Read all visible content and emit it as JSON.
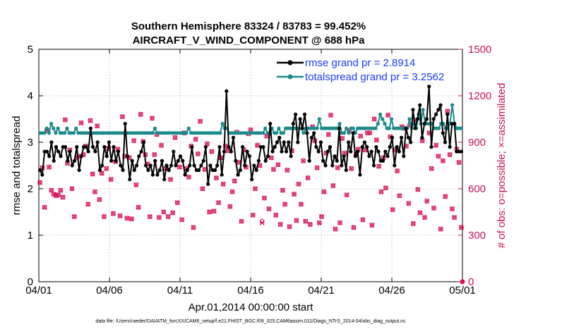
{
  "chart_data": {
    "type": "line",
    "title_line1": "Southern Hemisphere 83324 / 83783 = 99.452%",
    "title_line2": "AIRCRAFT_V_WIND_COMPONENT @ 688 hPa",
    "xlabel": "Apr.01,2014 00:00:00 start",
    "ylabel_left": "rmse and totalspread",
    "ylabel_right": "# of obs: o=possible; ×=assimilated",
    "x_ticks": [
      "04/01",
      "04/06",
      "04/11",
      "04/16",
      "04/21",
      "04/26",
      "05/01"
    ],
    "x_range_days": [
      0,
      30
    ],
    "y_left_ticks": [
      "0",
      "1",
      "2",
      "3",
      "4",
      "5"
    ],
    "y_left_range": [
      0,
      5
    ],
    "y_right_ticks": [
      "0",
      "300",
      "600",
      "900",
      "1200",
      "1500"
    ],
    "y_right_range": [
      0,
      1500
    ],
    "legend": [
      "rmse grand pr = 2.8914",
      "totalspread grand pr = 3.2562"
    ],
    "footnote": "data file: /Users/raeder/DAI/ATM_forcXX/CAM6_setup/f.e21.FHIST_BGC.f09_025.CAM6assim.011/Diags_NTrS_2014-04/obs_diag_output.nc",
    "colors": {
      "rmse": "#000000",
      "spread": "#1a8a8a",
      "obs": "#d8105a",
      "legend_text": "#1a3cff",
      "right_axis": "#c8105a"
    },
    "series": [
      {
        "name": "rmse",
        "values": [
          2.4,
          2.3,
          2.8,
          2.8,
          2.7,
          3.0,
          2.6,
          2.9,
          2.8,
          2.7,
          2.9,
          2.9,
          2.6,
          2.8,
          2.5,
          2.6,
          2.9,
          2.4,
          2.7,
          2.9,
          2.9,
          2.8,
          3.3,
          2.9,
          2.8,
          3.0,
          2.4,
          2.5,
          2.9,
          2.7,
          3.0,
          2.6,
          2.9,
          2.6,
          2.8,
          2.5,
          2.4,
          3.4,
          2.7,
          2.2,
          2.6,
          2.4,
          2.5,
          2.7,
          2.8,
          3.0,
          2.5,
          2.4,
          2.5,
          2.3,
          2.6,
          2.3,
          2.4,
          2.6,
          2.2,
          2.5,
          2.4,
          2.5,
          2.8,
          2.5,
          2.6,
          2.7,
          2.6,
          2.3,
          2.4,
          2.5,
          2.9,
          2.5,
          2.4,
          2.4,
          2.5,
          2.6,
          2.9,
          2.1,
          2.5,
          2.4,
          2.4,
          2.5,
          2.9,
          2.3,
          2.8,
          4.1,
          2.9,
          2.8,
          3.1,
          2.6,
          2.3,
          2.4,
          2.9,
          2.5,
          2.8,
          2.7,
          2.2,
          2.5,
          2.4,
          2.6,
          2.9,
          2.9,
          2.6,
          2.7,
          3.4,
          2.8,
          2.9,
          3.0,
          3.1,
          2.8,
          3.0,
          2.8,
          3.0,
          2.7,
          3.4,
          3.6,
          3.0,
          3.5,
          3.3,
          3.6,
          3.2,
          2.6,
          3.1,
          3.2,
          2.9,
          2.8,
          3.0,
          2.6,
          2.5,
          2.8,
          2.9,
          2.5,
          2.7,
          2.6,
          3.3,
          2.5,
          2.7,
          2.4,
          3.0,
          2.8,
          3.2,
          2.7,
          2.8,
          2.3,
          2.9,
          3.0,
          2.9,
          2.7,
          2.8,
          2.5,
          2.9,
          2.8,
          2.6,
          2.6,
          2.8,
          2.7,
          2.9,
          3.1,
          2.5,
          2.9,
          2.8,
          3.1,
          2.7,
          3.3,
          3.1,
          3.0,
          3.7,
          3.3,
          3.5,
          3.8,
          3.1,
          3.4,
          3.5,
          4.2,
          2.9,
          3.5,
          3.6,
          3.7,
          3.8,
          3.2,
          3.0,
          3.6,
          2.9,
          3.4,
          3.4,
          2.8,
          2.8,
          2.8
        ]
      },
      {
        "name": "totalspread",
        "values": [
          3.2,
          3.2,
          3.2,
          3.3,
          3.2,
          3.4,
          3.3,
          3.2,
          3.3,
          3.2,
          3.2,
          3.2,
          3.3,
          3.2,
          3.2,
          3.2,
          3.3,
          3.2,
          3.2,
          3.2,
          3.2,
          3.2,
          3.2,
          3.2,
          3.2,
          3.2,
          3.2,
          3.2,
          3.2,
          3.2,
          3.2,
          3.2,
          3.2,
          3.2,
          3.2,
          3.2,
          3.2,
          3.2,
          3.2,
          3.2,
          3.2,
          3.2,
          3.2,
          3.2,
          3.2,
          3.2,
          3.2,
          3.2,
          3.2,
          3.2,
          3.2,
          3.3,
          3.2,
          3.2,
          3.2,
          3.2,
          3.2,
          3.2,
          3.2,
          3.2,
          3.2,
          3.2,
          3.2,
          3.2,
          3.2,
          3.2,
          3.3,
          3.2,
          3.2,
          3.2,
          3.2,
          3.2,
          3.2,
          3.2,
          3.2,
          3.2,
          3.2,
          3.2,
          3.2,
          3.2,
          3.2,
          3.4,
          3.3,
          3.3,
          3.2,
          3.2,
          3.2,
          3.2,
          3.2,
          3.2,
          3.2,
          3.2,
          3.2,
          3.2,
          3.2,
          3.2,
          3.2,
          3.2,
          3.2,
          3.2,
          3.3,
          3.2,
          3.2,
          3.3,
          3.2,
          3.2,
          3.3,
          3.2,
          3.2,
          3.3,
          3.3,
          3.3,
          3.3,
          3.3,
          3.3,
          3.3,
          3.3,
          3.2,
          3.3,
          3.3,
          3.3,
          3.3,
          3.3,
          3.3,
          3.5,
          3.3,
          3.3,
          3.3,
          3.3,
          3.3,
          3.3,
          3.3,
          3.3,
          3.4,
          3.2,
          3.2,
          3.3,
          3.2,
          3.3,
          3.3,
          3.2,
          3.3,
          3.3,
          3.3,
          3.3,
          3.3,
          3.3,
          3.3,
          3.3,
          3.3,
          3.4,
          3.6,
          3.5,
          3.4,
          3.3,
          3.3,
          3.5,
          3.3,
          3.3,
          3.3,
          3.3,
          3.3,
          3.3,
          3.3,
          3.5,
          3.3,
          3.4,
          3.3,
          3.6,
          3.4,
          3.7,
          3.4,
          3.4,
          3.4,
          3.4,
          3.3,
          3.3,
          3.3,
          3.4,
          3.4,
          3.3,
          3.3,
          3.4,
          3.8,
          3.4,
          3.3,
          3.3,
          3.3
        ]
      },
      {
        "name": "obs_possible",
        "values": [
          640,
          735,
          480,
          975,
          740,
          590,
          565,
          555,
          560,
          590,
          545,
          1045,
          765,
          850,
          600,
          420,
          800,
          810,
          1025,
          820,
          875,
          500,
          1040,
          695,
          580,
          1005,
          530,
          700,
          420,
          730,
          860,
          660,
          440,
          775,
          855,
          425,
          1065,
          810,
          410,
          800,
          405,
          910,
          625,
          480,
          1080,
          905,
          820,
          760,
          420,
          1055,
          820,
          950,
          415,
          880,
          450,
          730,
          420,
          660,
          445,
          930,
          510,
          740,
          400,
          960,
          730,
          675,
          875,
          350,
          920,
          825,
          1035,
          600,
          725,
          890,
          450,
          840,
          455,
          670,
          510,
          800,
          630,
          875,
          845,
          485,
          580,
          650,
          965,
          770,
          390,
          850,
          740,
          955,
          980,
          430,
          600,
          880,
          750,
          390,
          540,
          940,
          470,
          800,
          725,
          430,
          755,
          370,
          590,
          500,
          720,
          355,
          845,
          565,
          395,
          630,
          500,
          780,
          390,
          670,
          370,
          1000,
          910,
          735,
          380,
          420,
          580,
          830,
          950,
          1075,
          620,
          340,
          735,
          380,
          925,
          830,
          560,
          975,
          730,
          350,
          820,
          855,
          940,
          400,
          850,
          960,
          960,
          365,
          1050,
          915,
          745,
          580,
          800,
          605,
          1075,
          935,
          465,
          850,
          715,
          555,
          1000,
          990,
          875,
          505,
          1010,
          375,
          1040,
          595,
          445,
          910,
          415,
          520,
          960,
          730,
          475,
          880,
          810,
          340,
          780,
          550,
          1100,
          820,
          470,
          415,
          855,
          770,
          350
        ]
      },
      {
        "name": "obs_assimilated",
        "values": [
          640,
          735,
          480,
          975,
          740,
          590,
          565,
          555,
          560,
          590,
          545,
          1045,
          765,
          850,
          600,
          420,
          800,
          810,
          1025,
          820,
          875,
          500,
          1040,
          695,
          580,
          1005,
          530,
          700,
          420,
          730,
          860,
          660,
          440,
          775,
          855,
          425,
          1065,
          810,
          410,
          800,
          405,
          910,
          625,
          480,
          1080,
          905,
          820,
          760,
          420,
          1055,
          820,
          950,
          415,
          880,
          450,
          730,
          420,
          660,
          445,
          930,
          510,
          740,
          400,
          960,
          730,
          675,
          875,
          350,
          920,
          825,
          1035,
          600,
          725,
          890,
          450,
          840,
          455,
          670,
          510,
          800,
          630,
          875,
          845,
          485,
          580,
          650,
          965,
          770,
          390,
          850,
          740,
          955,
          980,
          430,
          600,
          880,
          750,
          380,
          540,
          940,
          470,
          800,
          725,
          430,
          755,
          370,
          590,
          500,
          720,
          355,
          845,
          565,
          395,
          630,
          500,
          780,
          390,
          670,
          370,
          1000,
          910,
          735,
          380,
          420,
          580,
          830,
          950,
          1075,
          620,
          340,
          735,
          380,
          925,
          830,
          560,
          975,
          730,
          350,
          820,
          855,
          940,
          400,
          850,
          960,
          960,
          365,
          1050,
          915,
          745,
          580,
          800,
          605,
          1075,
          935,
          465,
          850,
          715,
          555,
          1000,
          990,
          875,
          505,
          1010,
          375,
          1040,
          595,
          445,
          910,
          415,
          520,
          960,
          730,
          475,
          880,
          810,
          340,
          780,
          550,
          1100,
          820,
          470,
          415,
          855,
          770,
          350
        ]
      }
    ]
  }
}
